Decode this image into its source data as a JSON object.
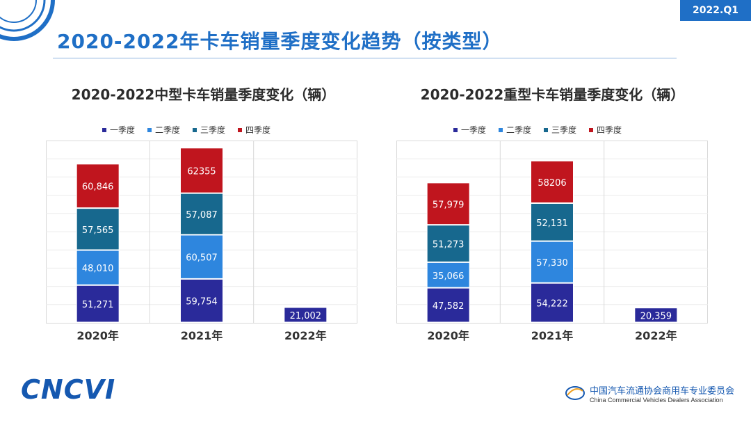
{
  "page": {
    "badge": "2022.Q1",
    "title": "2020-2022年卡车销量季度变化趋势（按类型）",
    "logo_left": "CNCVI",
    "logo_right_cn": "中国汽车流通协会商用车专业委员会",
    "logo_right_en": "China Commercial Vehicles Dealers Association"
  },
  "colors": {
    "q1": "#2a2a9a",
    "q2": "#2e86de",
    "q3": "#17688e",
    "q4": "#c0151e",
    "brand": "#1f6fc6"
  },
  "chart_data": [
    {
      "type": "bar",
      "stacked": true,
      "title": "2020-2022中型卡车销量季度变化（辆）",
      "categories": [
        "2020年",
        "2021年",
        "2022年"
      ],
      "series": [
        {
          "name": "一季度",
          "values": [
            51271,
            59754,
            21002
          ],
          "labels": [
            "51,271",
            "59,754",
            "21,002"
          ]
        },
        {
          "name": "二季度",
          "values": [
            48010,
            60507,
            null
          ],
          "labels": [
            "48,010",
            "60,507",
            ""
          ]
        },
        {
          "name": "三季度",
          "values": [
            57565,
            57087,
            null
          ],
          "labels": [
            "57,565",
            "57,087",
            ""
          ]
        },
        {
          "name": "四季度",
          "values": [
            60846,
            62355,
            null
          ],
          "labels": [
            "60,846",
            "62355",
            ""
          ]
        }
      ],
      "ylim": [
        0,
        250000
      ],
      "grid": true,
      "legend": "top"
    },
    {
      "type": "bar",
      "stacked": true,
      "title": "2020-2022重型卡车销量季度变化（辆）",
      "categories": [
        "2020年",
        "2021年",
        "2022年"
      ],
      "series": [
        {
          "name": "一季度",
          "values": [
            47582,
            54222,
            20359
          ],
          "labels": [
            "47,582",
            "54,222",
            "20,359"
          ]
        },
        {
          "name": "二季度",
          "values": [
            35066,
            57330,
            null
          ],
          "labels": [
            "35,066",
            "57,330",
            ""
          ]
        },
        {
          "name": "三季度",
          "values": [
            51273,
            52131,
            null
          ],
          "labels": [
            "51,273",
            "52,131",
            ""
          ]
        },
        {
          "name": "四季度",
          "values": [
            57979,
            58206,
            null
          ],
          "labels": [
            "57,979",
            "58206",
            ""
          ]
        }
      ],
      "ylim": [
        0,
        250000
      ],
      "grid": true,
      "legend": "top"
    }
  ]
}
